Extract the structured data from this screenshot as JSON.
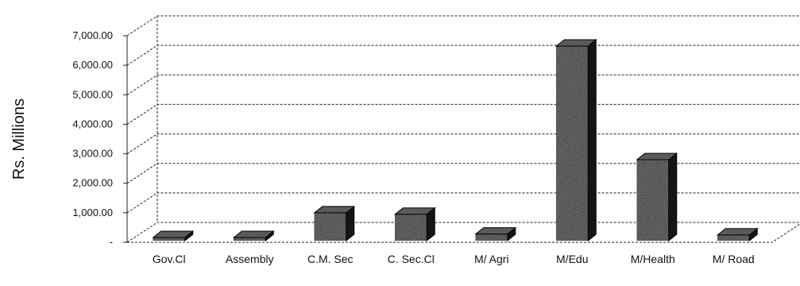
{
  "chart_data": {
    "type": "bar",
    "style": "3d-column",
    "categories": [
      "Gov.Cl",
      "Assembly",
      "C.M. Sec",
      "C. Sec.Cl",
      "M/ Agri",
      "M/Edu",
      "M/Health",
      "M/ Road"
    ],
    "values": [
      20,
      15,
      1000,
      950,
      280,
      6650,
      2800,
      250
    ],
    "ylabel": "Rs. Millions",
    "xlabel": "",
    "ylim": [
      0,
      7000
    ],
    "y_ticks": [
      0,
      1000,
      2000,
      3000,
      4000,
      5000,
      6000,
      7000
    ],
    "y_tick_labels": [
      "-",
      "1,000.00",
      "2,000.00",
      "3,000.00",
      "4,000.00",
      "5,000.00",
      "6,000.00",
      "7,000.00"
    ],
    "grid": true,
    "legend": "none",
    "colors": {
      "bar_front": "#2a2a2a",
      "bar_side": "#151515",
      "bar_top": "#5a5a5a",
      "grid": "#222222",
      "axis_text": "#111111"
    }
  }
}
